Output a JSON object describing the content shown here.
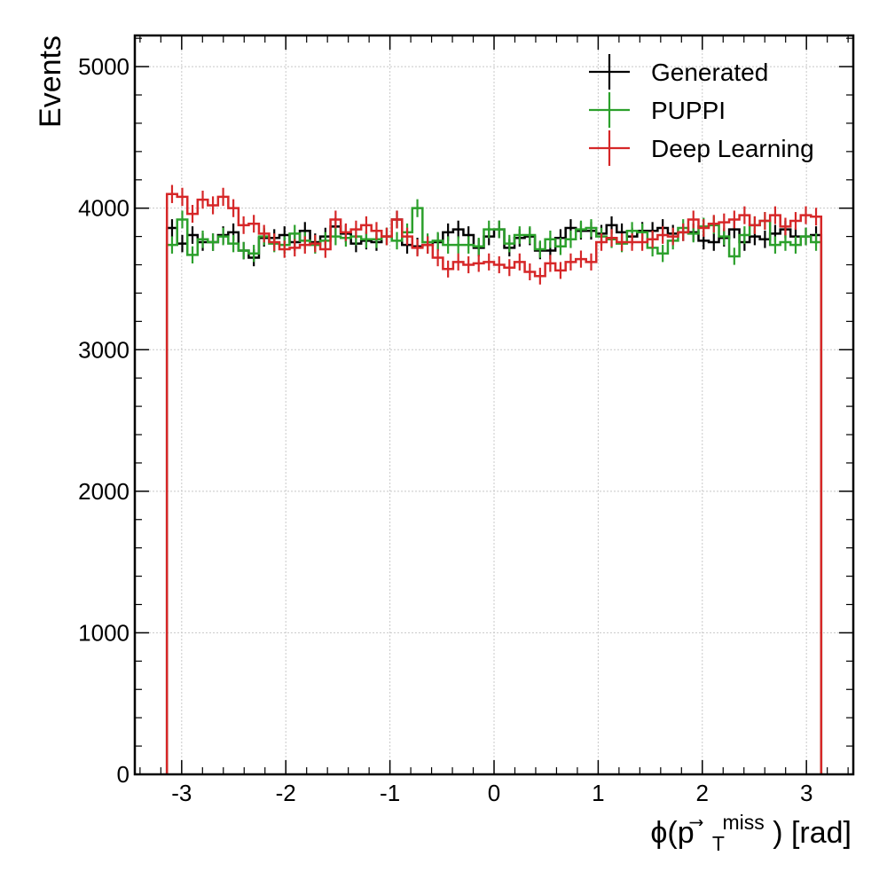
{
  "chart_data": {
    "type": "line",
    "style": "step-histogram-with-error-bars",
    "xlabel": "ϕ(p⃗T miss) [rad]",
    "xlabel_parts": {
      "main": "ϕ(p",
      "vec": "⃗",
      "sub": "T",
      "sup": "miss",
      "tail": ") [rad]"
    },
    "ylabel": "Events",
    "xlim": [
      -3.45,
      3.45
    ],
    "ylim": [
      0,
      5220
    ],
    "x_ticks": [
      -3,
      -2,
      -1,
      0,
      1,
      2,
      3
    ],
    "x_tick_labels": [
      "-3",
      "-2",
      "-1",
      "0",
      "1",
      "2",
      "3"
    ],
    "y_ticks": [
      0,
      1000,
      2000,
      3000,
      4000,
      5000
    ],
    "y_tick_labels": [
      "0",
      "1000",
      "2000",
      "3000",
      "4000",
      "5000"
    ],
    "grid": true,
    "legend_position": "top-right",
    "bins": {
      "start": -3.1416,
      "end": 3.1416,
      "count": 64
    },
    "series": [
      {
        "name": "Generated",
        "color": "#000000",
        "values": [
          3860,
          3750,
          3810,
          3760,
          3760,
          3810,
          3830,
          3700,
          3650,
          3790,
          3790,
          3810,
          3760,
          3840,
          3760,
          3800,
          3870,
          3820,
          3750,
          3770,
          3760,
          3800,
          3920,
          3740,
          3730,
          3740,
          3760,
          3830,
          3850,
          3810,
          3720,
          3800,
          3850,
          3720,
          3790,
          3800,
          3700,
          3700,
          3790,
          3860,
          3840,
          3840,
          3820,
          3880,
          3830,
          3800,
          3840,
          3840,
          3860,
          3820,
          3830,
          3830,
          3770,
          3760,
          3790,
          3850,
          3760,
          3800,
          3780,
          3820,
          3850,
          3800,
          3800,
          3810
        ]
      },
      {
        "name": "PUPPI",
        "color": "#2ca02c",
        "values": [
          3740,
          3920,
          3670,
          3780,
          3760,
          3800,
          3750,
          3700,
          3680,
          3800,
          3750,
          3740,
          3820,
          3770,
          3740,
          3770,
          3800,
          3790,
          3800,
          3780,
          3780,
          3800,
          3770,
          3830,
          4000,
          3760,
          3770,
          3740,
          3740,
          3740,
          3730,
          3850,
          3850,
          3750,
          3810,
          3810,
          3710,
          3780,
          3730,
          3780,
          3850,
          3860,
          3800,
          3780,
          3750,
          3840,
          3830,
          3720,
          3680,
          3770,
          3860,
          3820,
          3870,
          3880,
          3800,
          3660,
          3810,
          3880,
          3910,
          3740,
          3760,
          3740,
          3800,
          3760
        ]
      },
      {
        "name": "Deep Learning",
        "color": "#d62728",
        "values": [
          4100,
          4080,
          3960,
          4060,
          4020,
          4080,
          4000,
          3880,
          3890,
          3820,
          3760,
          3710,
          3720,
          3740,
          3750,
          3710,
          3920,
          3830,
          3850,
          3880,
          3840,
          3800,
          3920,
          3800,
          3720,
          3740,
          3650,
          3570,
          3620,
          3600,
          3610,
          3620,
          3600,
          3580,
          3620,
          3550,
          3520,
          3610,
          3560,
          3620,
          3640,
          3620,
          3760,
          3790,
          3760,
          3760,
          3760,
          3780,
          3810,
          3800,
          3830,
          3920,
          3860,
          3890,
          3900,
          3920,
          3950,
          3880,
          3910,
          3950,
          3870,
          3910,
          3950,
          3940
        ]
      }
    ]
  }
}
